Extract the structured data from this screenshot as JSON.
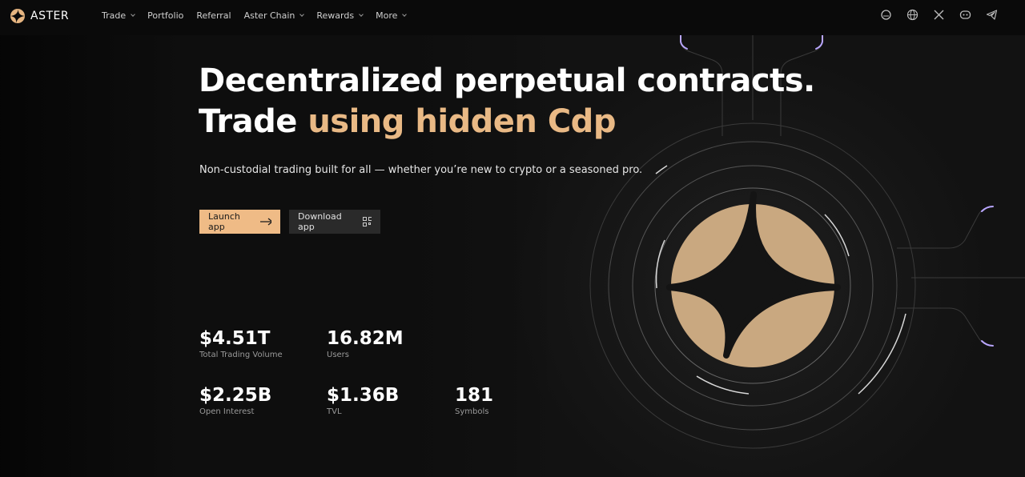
{
  "nav": {
    "brand": "ASTER",
    "items": [
      "Trade",
      "Portfolio",
      "Referral",
      "Aster Chain",
      "Rewards",
      "More"
    ]
  },
  "hero": {
    "title_line1": "Decentralized perpetual contracts.",
    "title_line2_plain": "Trade",
    "title_line2_highlight": "using hidden Cdp",
    "subtitle": "Non-custodial trading built for all — whether you’re new to crypto or a seasoned pro.",
    "primary_button": "Launch app",
    "secondary_button": "Download app"
  },
  "stats": [
    {
      "value": "$4.51T",
      "label": "Total Trading Volume"
    },
    {
      "value": "16.82M",
      "label": "Users"
    },
    {
      "value": "$2.25B",
      "label": "Open Interest"
    },
    {
      "value": "$1.36B",
      "label": "TVL"
    },
    {
      "value": "181",
      "label": "Symbols"
    }
  ]
}
